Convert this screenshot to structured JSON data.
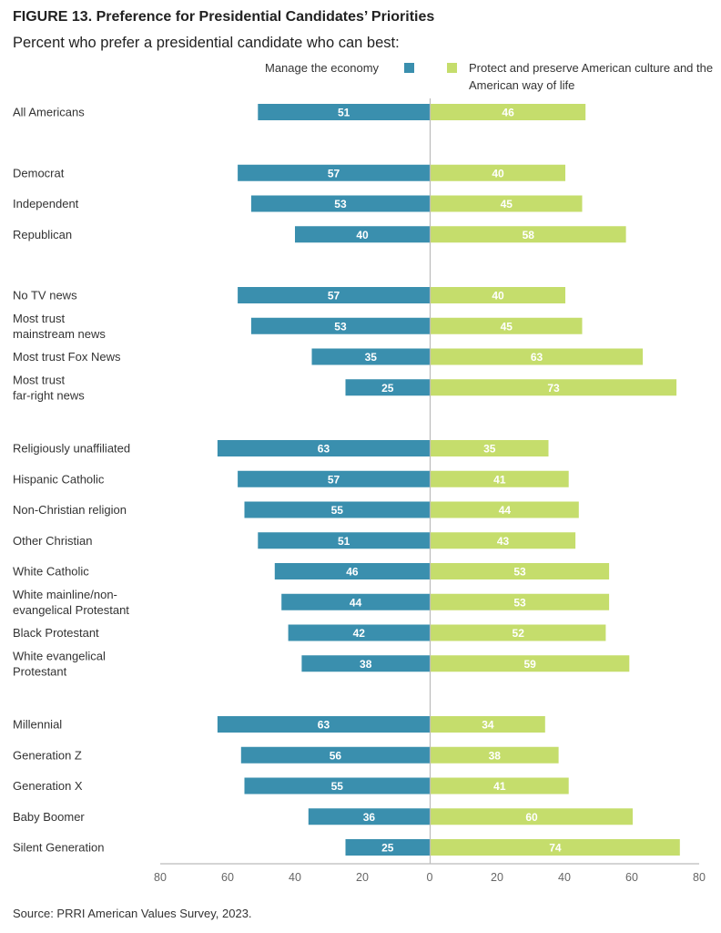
{
  "figure": {
    "title": "FIGURE 13.  Preference for Presidential Candidates’ Priorities",
    "subtitle": "Percent who prefer a presidential candidate who can best:",
    "source": "Source: PRRI American Values Survey, 2023."
  },
  "colors": {
    "economy": "#3a8fae",
    "culture": "#c5dd6c",
    "axis": "#bbbbbb"
  },
  "chart_data": {
    "type": "bar",
    "orientation": "horizontal-diverging",
    "series": [
      {
        "name": "Manage the economy",
        "side": "left",
        "values": [
          51,
          57,
          53,
          40,
          57,
          53,
          35,
          25,
          63,
          57,
          55,
          51,
          46,
          44,
          42,
          38,
          63,
          56,
          55,
          36,
          25
        ]
      },
      {
        "name": "Protect and preserve American culture and the American way of life",
        "side": "right",
        "values": [
          46,
          40,
          45,
          58,
          40,
          45,
          63,
          73,
          35,
          41,
          44,
          43,
          53,
          53,
          52,
          59,
          34,
          38,
          41,
          60,
          74
        ]
      }
    ],
    "categories": [
      [
        "All Americans"
      ],
      [
        "Democrat"
      ],
      [
        "Independent"
      ],
      [
        "Republican"
      ],
      [
        "No TV news"
      ],
      [
        "Most trust",
        "mainstream news"
      ],
      [
        "Most trust Fox News"
      ],
      [
        "Most trust",
        "far-right news"
      ],
      [
        "Religiously unaffiliated"
      ],
      [
        "Hispanic Catholic"
      ],
      [
        "Non-Christian religion"
      ],
      [
        "Other Christian"
      ],
      [
        "White Catholic"
      ],
      [
        "White mainline/non-",
        "evangelical Protestant"
      ],
      [
        "Black Protestant"
      ],
      [
        "White evangelical",
        "Protestant"
      ],
      [
        "Millennial"
      ],
      [
        "Generation Z"
      ],
      [
        "Generation X"
      ],
      [
        "Baby Boomer"
      ],
      [
        "Silent Generation"
      ]
    ],
    "groups": [
      [
        0
      ],
      [
        1,
        2,
        3
      ],
      [
        4,
        5,
        6,
        7
      ],
      [
        8,
        9,
        10,
        11,
        12,
        13,
        14,
        15
      ],
      [
        16,
        17,
        18,
        19,
        20
      ]
    ],
    "xlim": [
      -80,
      80
    ],
    "xticks": [
      80,
      60,
      40,
      20,
      0,
      20,
      40,
      60,
      80
    ],
    "grid": false,
    "legend": "top"
  }
}
